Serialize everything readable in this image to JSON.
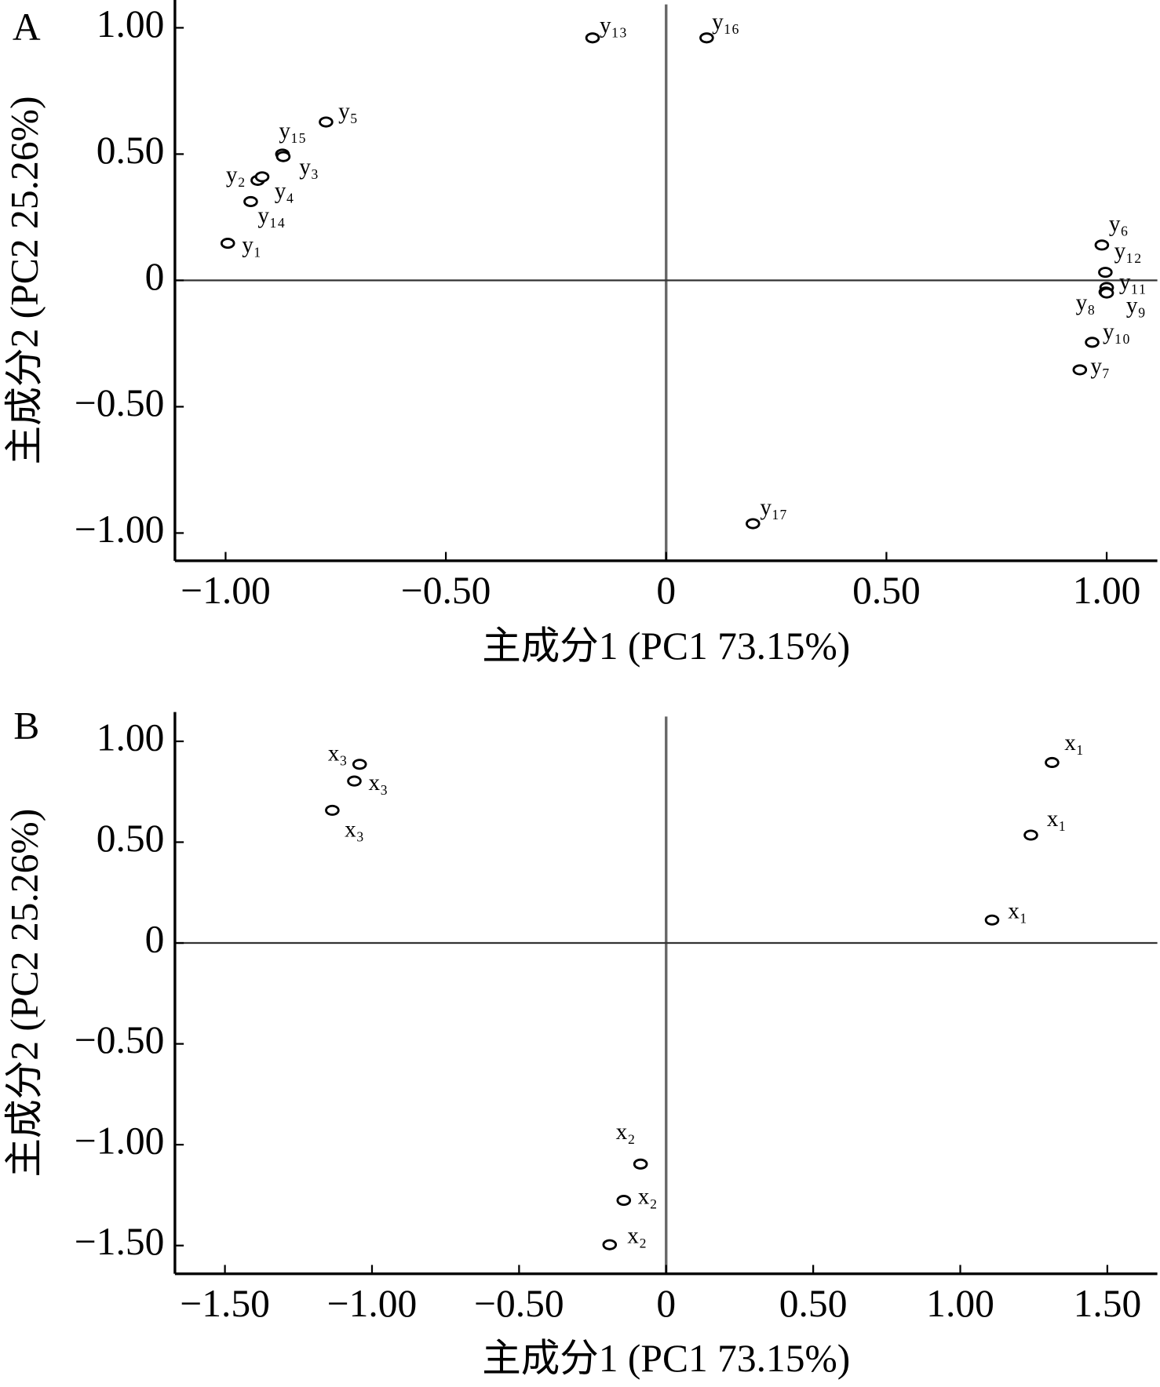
{
  "chart_data": [
    {
      "type": "scatter",
      "panel": "A",
      "x_label": "主成分1 (PC1 73.15%)",
      "y_label": "主成分2 (PC2 25.26%)",
      "color": "#000000",
      "xlim": [
        -1.115,
        1.115
      ],
      "ylim": [
        -1.11,
        1.11
      ],
      "xticks": [
        {
          "value": -1,
          "label": "−1.00"
        },
        {
          "value": -0.5,
          "label": "−0.50"
        },
        0,
        {
          "value": 0.5,
          "label": "0.50"
        },
        {
          "value": 1,
          "label": "1.00"
        }
      ],
      "yticks": [
        {
          "value": -1,
          "label": "−1.00"
        },
        {
          "value": -0.5,
          "label": "−0.50"
        },
        0,
        {
          "value": 0.5,
          "label": "0.50"
        },
        {
          "value": 1,
          "label": "1.00"
        }
      ],
      "point_labels": [
        "y₁₃",
        "y₁₆",
        "y₅",
        "y₁₅",
        "y₃",
        "y₂",
        "y₄",
        "y₁₄",
        "y₁",
        "y₆",
        "y₁₂",
        "y₁₁",
        "y₈",
        "y₉",
        "y₁₀",
        "y₇",
        "y₁₇"
      ],
      "x": [
        -0.167,
        0.092,
        -0.772,
        -0.871,
        -0.869,
        -0.927,
        -0.917,
        -0.943,
        -0.995,
        0.989,
        0.997,
        1.0,
        0.998,
        1.0,
        0.967,
        0.939,
        0.197
      ],
      "values": [
        0.96,
        0.96,
        0.627,
        0.5,
        0.49,
        0.396,
        0.41,
        0.312,
        0.147,
        0.14,
        0.032,
        -0.028,
        -0.046,
        -0.05,
        -0.245,
        -0.354,
        -0.963
      ]
    },
    {
      "type": "scatter",
      "panel": "B",
      "x_label": "主成分1 (PC1 73.15%)",
      "y_label": "主成分2 (PC2 25.26%)",
      "color": "#000000",
      "xlim": [
        -1.67,
        1.67
      ],
      "ylim": [
        -1.64,
        1.145
      ],
      "xticks": [
        {
          "value": -1.5,
          "label": "−1.50"
        },
        {
          "value": -1,
          "label": "−1.00"
        },
        {
          "value": -0.5,
          "label": "−0.50"
        },
        0,
        {
          "value": 0.5,
          "label": "0.50"
        },
        {
          "value": 1,
          "label": "1.00"
        },
        {
          "value": 1.5,
          "label": "1.50"
        }
      ],
      "yticks": [
        {
          "value": -1.5,
          "label": "−1.50"
        },
        {
          "value": -1,
          "label": "−1.00"
        },
        {
          "value": -0.5,
          "label": "−0.50"
        },
        0,
        {
          "value": 0.5,
          "label": "0.50"
        },
        {
          "value": 1,
          "label": "1.00"
        }
      ],
      "point_labels": [
        "x₃",
        "x₃",
        "x₃",
        "x₁",
        "x₁",
        "x₁",
        "x₂",
        "x₂",
        "x₂"
      ],
      "x": [
        -1.042,
        -1.06,
        -1.135,
        1.312,
        1.24,
        1.108,
        -0.087,
        -0.144,
        -0.192
      ],
      "values": [
        0.886,
        0.803,
        0.658,
        0.895,
        0.535,
        0.114,
        -1.096,
        -1.276,
        -1.496
      ]
    }
  ]
}
